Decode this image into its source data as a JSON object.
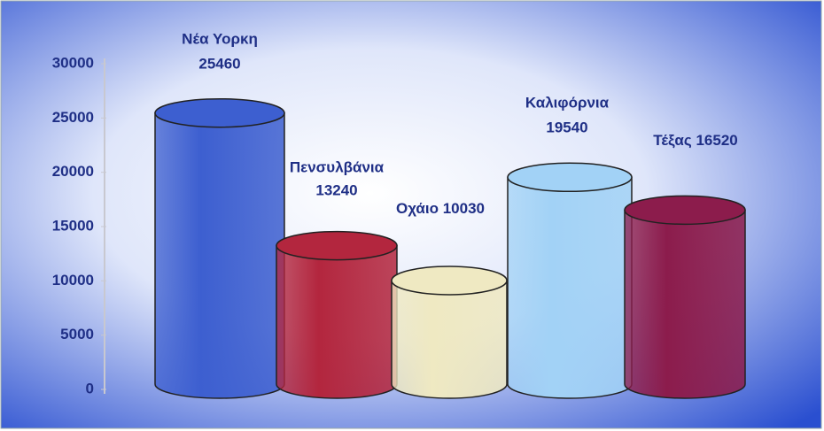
{
  "chart_data": {
    "type": "bar",
    "categories": [
      "Νέα Υορκη",
      "Πενσυλβάνια",
      "Οχάιο",
      "Καλιφόρνια",
      "Τέξας"
    ],
    "values": [
      25460,
      13240,
      10030,
      19540,
      16520
    ],
    "colors": [
      "#3d5fd0",
      "#b3263e",
      "#efe9c2",
      "#a2d2f6",
      "#8c1c4c"
    ],
    "ylim": [
      0,
      30000
    ],
    "yticks": [
      0,
      5000,
      10000,
      15000,
      20000,
      25000,
      30000
    ]
  }
}
